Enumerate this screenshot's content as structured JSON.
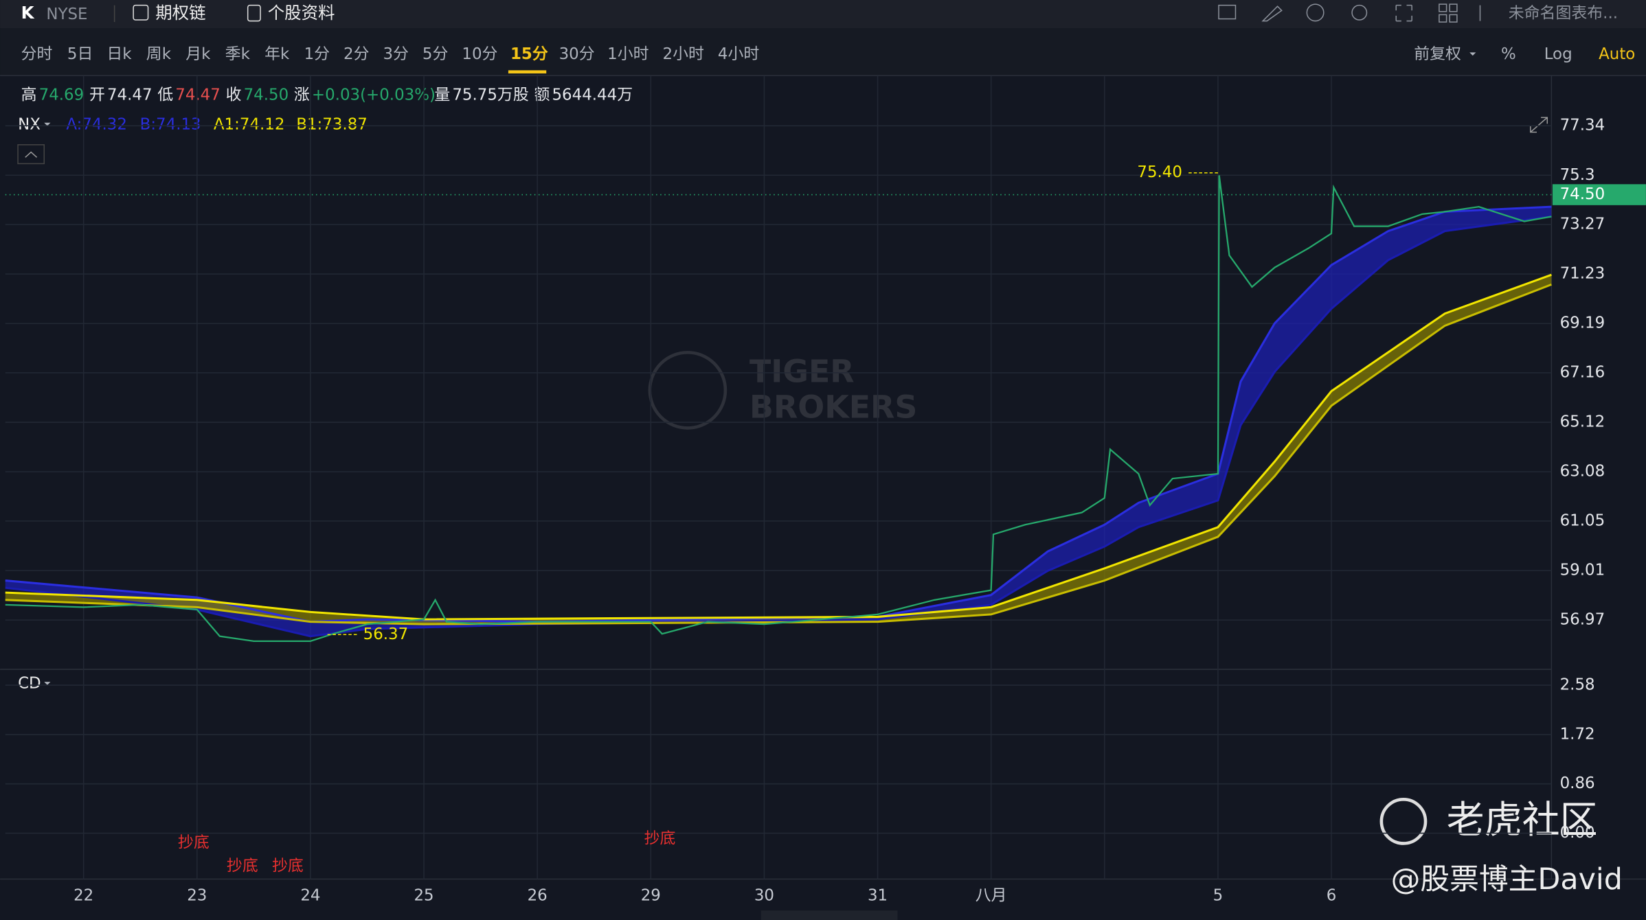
{
  "toolbar": {
    "symbol": "K",
    "exchange": "NYSE",
    "options": "期权链",
    "profile": "个股资料",
    "layout": "未命名图表布..."
  },
  "periods": [
    "分时",
    "5日",
    "日k",
    "周k",
    "月k",
    "季k",
    "年k",
    "1分",
    "2分",
    "3分",
    "5分",
    "10分",
    "15分",
    "30分",
    "1小时",
    "2小时",
    "4小时"
  ],
  "active_period": "15分",
  "right_controls": [
    "前复权",
    "%",
    "Log",
    "Auto"
  ],
  "quote": [
    [
      "高",
      "74.69"
    ],
    [
      "开",
      "74.47"
    ],
    [
      "低",
      "74.47"
    ],
    [
      "收",
      "74.50"
    ],
    [
      "涨",
      "+0.03(+0.03%)"
    ],
    [
      "量",
      "75.75万股"
    ],
    [
      "额",
      "5644.44万"
    ]
  ],
  "indicator": {
    "name": "NX",
    "values": [
      "A:74.32",
      "B:74.13",
      "A1:74.12",
      "B1:73.87"
    ]
  },
  "watermark": {
    "brand": "TIGER",
    "brand2": "BROKERS",
    "community": "老虎社区",
    "author": "@股票博主David"
  },
  "chart_data": [
    {
      "type": "line",
      "categories": [
        "22",
        "23",
        "24",
        "25",
        "26",
        "29",
        "30",
        "31",
        "八月",
        null,
        "5",
        "6"
      ],
      "xlim": [
        -0.69,
        12.94
      ],
      "ylim": [
        55.07,
        78.2
      ],
      "yticks": [
        77.34,
        75.3,
        73.27,
        71.23,
        69.19,
        67.16,
        65.12,
        63.08,
        61.05,
        59.01,
        56.97
      ],
      "grid": true,
      "last_price": {
        "value": 74.5,
        "label": "74.50",
        "color": "#26a96c"
      },
      "annotations": [
        {
          "x": 10,
          "value": 75.4,
          "label": "75.40"
        },
        {
          "x": 2.15,
          "value": 56.37,
          "label": "56.37"
        }
      ],
      "series": [
        {
          "color": "#26a96c",
          "x": [
            -0.69,
            0,
            0.5,
            1,
            1.2,
            1.5,
            2,
            2.2,
            2.5,
            3,
            3.1,
            3.2,
            3.5,
            4,
            4.5,
            5,
            5.1,
            5.5,
            6,
            6.5,
            7,
            7.5,
            8,
            8.02,
            8.3,
            8.8,
            9,
            9.05,
            9.3,
            9.4,
            9.6,
            10,
            10.01,
            10.1,
            10.3,
            10.5,
            10.8,
            11,
            11.02,
            11.2,
            11.5,
            11.8,
            12,
            12.3,
            12.7,
            12.94
          ],
          "values": [
            57.6,
            57.5,
            57.6,
            57.4,
            56.3,
            56.1,
            56.1,
            56.4,
            56.8,
            57.0,
            57.8,
            56.9,
            56.8,
            56.9,
            56.9,
            56.9,
            56.4,
            56.9,
            56.8,
            57.0,
            57.2,
            57.8,
            58.2,
            60.5,
            60.9,
            61.4,
            62.0,
            64.0,
            63.0,
            61.7,
            62.8,
            63.0,
            75.3,
            72.0,
            70.7,
            71.5,
            72.3,
            72.9,
            74.8,
            73.2,
            73.2,
            73.7,
            73.8,
            74.0,
            73.4,
            73.6
          ]
        },
        {
          "color": "#2a2ee0",
          "x": [
            -0.69,
            1,
            2,
            2.5,
            4,
            7,
            8,
            8.5,
            9,
            9.3,
            10,
            10.2,
            10.5,
            11,
            11.5,
            12,
            12.94
          ],
          "values": [
            58.6,
            57.9,
            56.9,
            57.0,
            56.9,
            57.1,
            58.0,
            59.8,
            60.9,
            61.8,
            63.0,
            66.8,
            69.2,
            71.6,
            73.0,
            73.8,
            74.0
          ]
        },
        {
          "color": "#1a1cb0",
          "x": [
            -0.69,
            1,
            2,
            2.5,
            4,
            7,
            8,
            8.5,
            9,
            9.3,
            10,
            10.2,
            10.5,
            11,
            11.5,
            12,
            12.94
          ],
          "values": [
            58.3,
            57.4,
            56.3,
            56.6,
            56.8,
            57.0,
            57.6,
            59.0,
            60.0,
            60.8,
            61.9,
            65.0,
            67.2,
            69.8,
            71.8,
            73.0,
            73.6
          ]
        },
        {
          "color": "#f2e600",
          "x": [
            -0.69,
            1,
            2,
            3,
            7,
            8,
            9,
            10,
            10.5,
            11,
            12,
            12.94
          ],
          "values": [
            58.1,
            57.8,
            57.3,
            57.0,
            57.1,
            57.5,
            59.1,
            60.8,
            63.5,
            66.4,
            69.6,
            71.2
          ]
        },
        {
          "color": "#c8bd00",
          "x": [
            -0.69,
            1,
            2,
            3,
            7,
            8,
            9,
            10,
            10.5,
            11,
            12,
            12.94
          ],
          "values": [
            57.8,
            57.5,
            56.9,
            56.8,
            56.9,
            57.2,
            58.6,
            60.4,
            62.9,
            65.8,
            69.1,
            70.8
          ]
        }
      ]
    },
    {
      "type": "line",
      "name": "CD",
      "xlim": [
        -0.69,
        12.94
      ],
      "ylim": [
        -0.8,
        2.82
      ],
      "yticks": [
        2.58,
        1.72,
        0.86,
        {
          "value": 0,
          "label": "0.00"
        }
      ],
      "annotations": [
        {
          "x": 0.97,
          "value": -0.17,
          "label": "抄底"
        },
        {
          "x": 1.4,
          "value": -0.58,
          "label": "抄底"
        },
        {
          "x": 1.8,
          "value": -0.58,
          "label": "抄底"
        },
        {
          "x": 5.08,
          "value": -0.1,
          "label": "抄底"
        }
      ]
    }
  ]
}
